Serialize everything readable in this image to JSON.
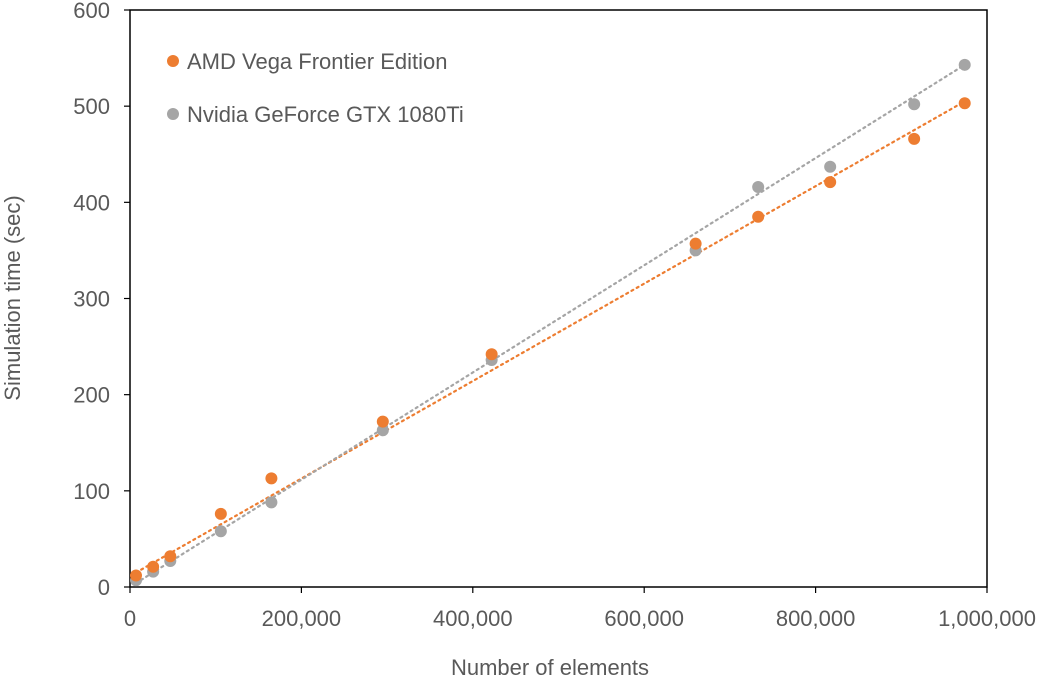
{
  "chart_data": {
    "type": "scatter",
    "xlabel": "Number of elements",
    "ylabel": "Simulation time (sec)",
    "xlim": [
      0,
      1000000
    ],
    "ylim": [
      0,
      600
    ],
    "x_ticks": [
      0,
      200000,
      400000,
      600000,
      800000,
      1000000
    ],
    "x_tick_labels": [
      "0",
      "200,000",
      "400,000",
      "600,000",
      "800,000",
      "1,000,000"
    ],
    "y_ticks": [
      0,
      100,
      200,
      300,
      400,
      500,
      600
    ],
    "y_tick_labels": [
      "0",
      "100",
      "200",
      "300",
      "400",
      "500",
      "600"
    ],
    "grid": false,
    "legend_position": "top-left",
    "trendlines": "linear, dotted",
    "series": [
      {
        "name": "AMD Vega Frontier Edition",
        "color": "#ED7D31",
        "points": [
          [
            7000,
            12
          ],
          [
            27000,
            21
          ],
          [
            47000,
            32
          ],
          [
            106000,
            76
          ],
          [
            165000,
            113
          ],
          [
            295000,
            172
          ],
          [
            422000,
            242
          ],
          [
            660000,
            357
          ],
          [
            733000,
            385
          ],
          [
            817000,
            421
          ],
          [
            915000,
            466
          ],
          [
            974000,
            503
          ]
        ],
        "trend": [
          [
            7000,
            15
          ],
          [
            974000,
            505
          ]
        ]
      },
      {
        "name": "Nvidia GeForce GTX 1080Ti",
        "color": "#A5A5A5",
        "points": [
          [
            7000,
            7
          ],
          [
            27000,
            16
          ],
          [
            47000,
            27
          ],
          [
            106000,
            58
          ],
          [
            165000,
            88
          ],
          [
            295000,
            163
          ],
          [
            422000,
            236
          ],
          [
            660000,
            350
          ],
          [
            733000,
            416
          ],
          [
            817000,
            437
          ],
          [
            915000,
            502
          ],
          [
            974000,
            543
          ]
        ],
        "trend": [
          [
            7000,
            4
          ],
          [
            974000,
            543
          ]
        ]
      }
    ]
  }
}
